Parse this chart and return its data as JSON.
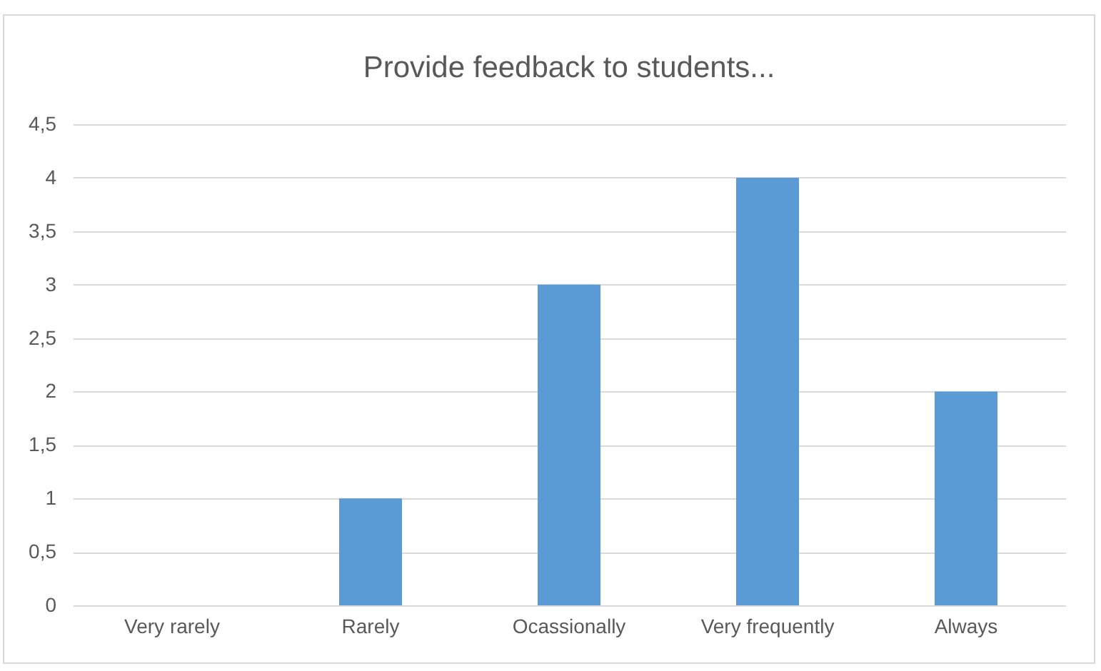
{
  "chart_data": {
    "type": "bar",
    "title": "Provide feedback to students...",
    "categories": [
      "Very rarely",
      "Rarely",
      "Ocassionally",
      "Very frequently",
      "Always"
    ],
    "values": [
      0,
      1,
      3,
      4,
      2
    ],
    "color": "#5b9bd5",
    "ylim": [
      0,
      4.5
    ],
    "yticks": [
      0,
      {
        "value": 0.5,
        "label": "0,5"
      },
      1,
      {
        "value": 1.5,
        "label": "1,5"
      },
      2,
      {
        "value": 2.5,
        "label": "2,5"
      },
      3,
      {
        "value": 3.5,
        "label": "3,5"
      },
      4,
      {
        "value": 4.5,
        "label": "4,5"
      }
    ],
    "grid": "y"
  }
}
